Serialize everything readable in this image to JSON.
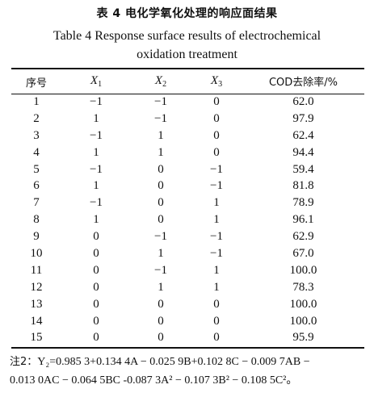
{
  "title_cn": "表 4  电化学氧化处理的响应面结果",
  "title_en_line1": "Table 4  Response surface results of electrochemical",
  "title_en_line2": "oxidation treatment",
  "headers": {
    "no": "序号",
    "x1": "X",
    "x1_sub": "1",
    "x2": "X",
    "x2_sub": "2",
    "x3": "X",
    "x3_sub": "3",
    "cod": "COD去除率/%"
  },
  "rows": [
    [
      "1",
      "−1",
      "−1",
      "0",
      "62.0"
    ],
    [
      "2",
      "1",
      "−1",
      "0",
      "97.9"
    ],
    [
      "3",
      "−1",
      "1",
      "0",
      "62.4"
    ],
    [
      "4",
      "1",
      "1",
      "0",
      "94.4"
    ],
    [
      "5",
      "−1",
      "0",
      "−1",
      "59.4"
    ],
    [
      "6",
      "1",
      "0",
      "−1",
      "81.8"
    ],
    [
      "7",
      "−1",
      "0",
      "1",
      "78.9"
    ],
    [
      "8",
      "1",
      "0",
      "1",
      "96.1"
    ],
    [
      "9",
      "0",
      "−1",
      "−1",
      "62.9"
    ],
    [
      "10",
      "0",
      "1",
      "−1",
      "67.0"
    ],
    [
      "11",
      "0",
      "−1",
      "1",
      "100.0"
    ],
    [
      "12",
      "0",
      "1",
      "1",
      "78.3"
    ],
    [
      "13",
      "0",
      "0",
      "0",
      "100.0"
    ],
    [
      "14",
      "0",
      "0",
      "0",
      "100.0"
    ],
    [
      "15",
      "0",
      "0",
      "0",
      "95.9"
    ]
  ],
  "note": {
    "label": "注2：",
    "line1": "Y₂=0.985 3+0.134 4A − 0.025 9B+0.102 8C − 0.009 7AB −",
    "line2": "0.013 0AC − 0.064 5BC -0.087 3A² − 0.107 3B² − 0.108 5C²。"
  }
}
